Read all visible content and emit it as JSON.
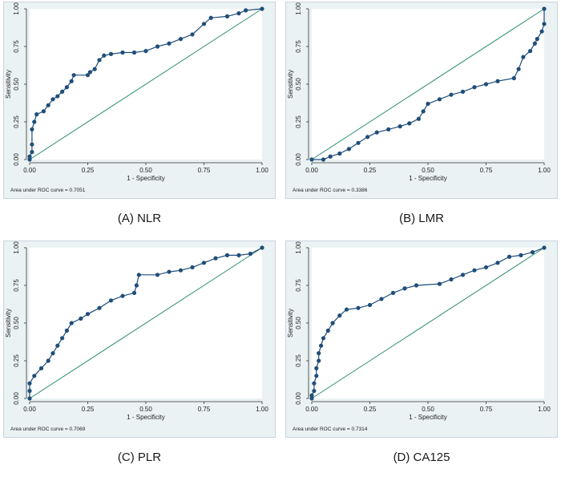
{
  "colors": {
    "curve": "#1f4e79",
    "diagonal": "#2e8b74",
    "plot_bg": "#ffffff",
    "outer_bg": "#eaf2f3",
    "axis": "#333333"
  },
  "chart_data": [
    {
      "type": "line",
      "caption": "(A) NLR",
      "xlabel": "1 - Specificity",
      "ylabel": "Sensitivity",
      "xlim": [
        0,
        1
      ],
      "ylim": [
        0,
        1
      ],
      "xticks": [
        "0.00",
        "0.25",
        "0.50",
        "0.75",
        "1.00"
      ],
      "yticks": [
        "0.00",
        "0.25",
        "0.50",
        "0.75",
        "1.00"
      ],
      "auc_label": "Area under ROC curve = 0.7051",
      "grid": false,
      "series": [
        {
          "points": [
            [
              0,
              0
            ],
            [
              0,
              0.02
            ],
            [
              0.01,
              0.05
            ],
            [
              0.01,
              0.1
            ],
            [
              0.01,
              0.2
            ],
            [
              0.02,
              0.25
            ],
            [
              0.03,
              0.3
            ],
            [
              0.06,
              0.32
            ],
            [
              0.08,
              0.36
            ],
            [
              0.1,
              0.4
            ],
            [
              0.12,
              0.42
            ],
            [
              0.14,
              0.45
            ],
            [
              0.16,
              0.48
            ],
            [
              0.18,
              0.52
            ],
            [
              0.19,
              0.56
            ],
            [
              0.25,
              0.56
            ],
            [
              0.26,
              0.58
            ],
            [
              0.28,
              0.6
            ],
            [
              0.3,
              0.66
            ],
            [
              0.32,
              0.69
            ],
            [
              0.35,
              0.7
            ],
            [
              0.4,
              0.71
            ],
            [
              0.45,
              0.71
            ],
            [
              0.5,
              0.72
            ],
            [
              0.55,
              0.75
            ],
            [
              0.6,
              0.77
            ],
            [
              0.65,
              0.8
            ],
            [
              0.7,
              0.83
            ],
            [
              0.75,
              0.9
            ],
            [
              0.78,
              0.94
            ],
            [
              0.85,
              0.95
            ],
            [
              0.9,
              0.97
            ],
            [
              0.93,
              0.99
            ],
            [
              1,
              1
            ]
          ]
        },
        {
          "points": [
            [
              0,
              0
            ],
            [
              1,
              1
            ]
          ]
        }
      ]
    },
    {
      "type": "line",
      "caption": "(B) LMR",
      "xlabel": "1 - Specificity",
      "ylabel": "Sensitivity",
      "xlim": [
        0,
        1
      ],
      "ylim": [
        0,
        1
      ],
      "xticks": [
        "0.00",
        "0.25",
        "0.50",
        "0.75",
        "1.00"
      ],
      "yticks": [
        "0.00",
        "0.25",
        "0.50",
        "0.75",
        "1.00"
      ],
      "auc_label": "Area under ROC curve = 0.3386",
      "grid": false,
      "series": [
        {
          "points": [
            [
              0,
              0
            ],
            [
              0.05,
              0
            ],
            [
              0.08,
              0.02
            ],
            [
              0.12,
              0.04
            ],
            [
              0.16,
              0.07
            ],
            [
              0.2,
              0.11
            ],
            [
              0.24,
              0.15
            ],
            [
              0.28,
              0.18
            ],
            [
              0.33,
              0.2
            ],
            [
              0.38,
              0.22
            ],
            [
              0.42,
              0.24
            ],
            [
              0.46,
              0.27
            ],
            [
              0.48,
              0.32
            ],
            [
              0.5,
              0.37
            ],
            [
              0.55,
              0.4
            ],
            [
              0.6,
              0.43
            ],
            [
              0.65,
              0.45
            ],
            [
              0.7,
              0.48
            ],
            [
              0.75,
              0.5
            ],
            [
              0.8,
              0.52
            ],
            [
              0.87,
              0.54
            ],
            [
              0.89,
              0.6
            ],
            [
              0.91,
              0.68
            ],
            [
              0.94,
              0.72
            ],
            [
              0.96,
              0.77
            ],
            [
              0.97,
              0.8
            ],
            [
              0.99,
              0.85
            ],
            [
              1,
              0.9
            ],
            [
              1,
              1
            ]
          ]
        },
        {
          "points": [
            [
              0,
              0
            ],
            [
              1,
              1
            ]
          ]
        }
      ]
    },
    {
      "type": "line",
      "caption": "(C) PLR",
      "xlabel": "1 - Specificity",
      "ylabel": "Sensitivity",
      "xlim": [
        0,
        1
      ],
      "ylim": [
        0,
        1
      ],
      "xticks": [
        "0.00",
        "0.25",
        "0.50",
        "0.75",
        "1.00"
      ],
      "yticks": [
        "0.00",
        "0.25",
        "0.50",
        "0.75",
        "1.00"
      ],
      "auc_label": "Area under ROC curve = 0.7069",
      "grid": false,
      "series": [
        {
          "points": [
            [
              0,
              0
            ],
            [
              0,
              0.05
            ],
            [
              0,
              0.1
            ],
            [
              0.02,
              0.15
            ],
            [
              0.05,
              0.2
            ],
            [
              0.08,
              0.25
            ],
            [
              0.1,
              0.3
            ],
            [
              0.12,
              0.35
            ],
            [
              0.14,
              0.4
            ],
            [
              0.16,
              0.45
            ],
            [
              0.18,
              0.5
            ],
            [
              0.22,
              0.53
            ],
            [
              0.25,
              0.56
            ],
            [
              0.3,
              0.6
            ],
            [
              0.35,
              0.65
            ],
            [
              0.4,
              0.68
            ],
            [
              0.45,
              0.7
            ],
            [
              0.46,
              0.75
            ],
            [
              0.47,
              0.82
            ],
            [
              0.55,
              0.82
            ],
            [
              0.6,
              0.84
            ],
            [
              0.65,
              0.85
            ],
            [
              0.7,
              0.87
            ],
            [
              0.75,
              0.9
            ],
            [
              0.8,
              0.93
            ],
            [
              0.85,
              0.95
            ],
            [
              0.9,
              0.95
            ],
            [
              0.95,
              0.96
            ],
            [
              1,
              1
            ]
          ]
        },
        {
          "points": [
            [
              0,
              0
            ],
            [
              1,
              1
            ]
          ]
        }
      ]
    },
    {
      "type": "line",
      "caption": "(D) CA125",
      "xlabel": "1 - Specificity",
      "ylabel": "Sensitivity",
      "xlim": [
        0,
        1
      ],
      "ylim": [
        0,
        1
      ],
      "xticks": [
        "0.00",
        "0.25",
        "0.50",
        "0.75",
        "1.00"
      ],
      "yticks": [
        "0.00",
        "0.25",
        "0.50",
        "0.75",
        "1.00"
      ],
      "auc_label": "Area under ROC curve = 0.7314",
      "grid": false,
      "series": [
        {
          "points": [
            [
              0,
              0
            ],
            [
              0,
              0.02
            ],
            [
              0.01,
              0.05
            ],
            [
              0.01,
              0.1
            ],
            [
              0.02,
              0.15
            ],
            [
              0.02,
              0.2
            ],
            [
              0.03,
              0.25
            ],
            [
              0.03,
              0.3
            ],
            [
              0.04,
              0.35
            ],
            [
              0.05,
              0.4
            ],
            [
              0.07,
              0.45
            ],
            [
              0.09,
              0.5
            ],
            [
              0.12,
              0.55
            ],
            [
              0.15,
              0.59
            ],
            [
              0.2,
              0.6
            ],
            [
              0.25,
              0.62
            ],
            [
              0.3,
              0.66
            ],
            [
              0.35,
              0.7
            ],
            [
              0.4,
              0.73
            ],
            [
              0.45,
              0.75
            ],
            [
              0.55,
              0.76
            ],
            [
              0.6,
              0.79
            ],
            [
              0.65,
              0.82
            ],
            [
              0.7,
              0.85
            ],
            [
              0.75,
              0.87
            ],
            [
              0.8,
              0.9
            ],
            [
              0.85,
              0.94
            ],
            [
              0.9,
              0.95
            ],
            [
              0.95,
              0.97
            ],
            [
              1,
              1
            ]
          ]
        },
        {
          "points": [
            [
              0,
              0
            ],
            [
              1,
              1
            ]
          ]
        }
      ]
    }
  ]
}
